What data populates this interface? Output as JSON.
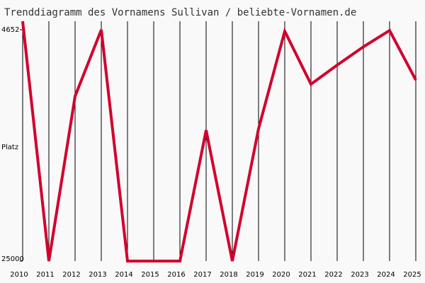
{
  "chart_data": {
    "type": "line",
    "title": "Trenddiagramm des Vornamens Sullivan / beliebte-Vornamen.de",
    "y_label": "Platz",
    "categories": [
      "2010",
      "2011",
      "2012",
      "2013",
      "2014",
      "2015",
      "2016",
      "2017",
      "2018",
      "2019",
      "2020",
      "2021",
      "2022",
      "2023",
      "2024",
      "2025"
    ],
    "series": [
      {
        "name": "Sullivan",
        "color": "#d2002c",
        "values": [
          3900,
          25000,
          10500,
          4652,
          25000,
          25000,
          25000,
          13490,
          25000,
          13360,
          4780,
          9440,
          7760,
          6150,
          4714,
          9070
        ]
      }
    ],
    "ylim": [
      3900,
      25000
    ],
    "y_inverted": true,
    "yticks": [
      4652,
      25000
    ],
    "grid": true
  }
}
